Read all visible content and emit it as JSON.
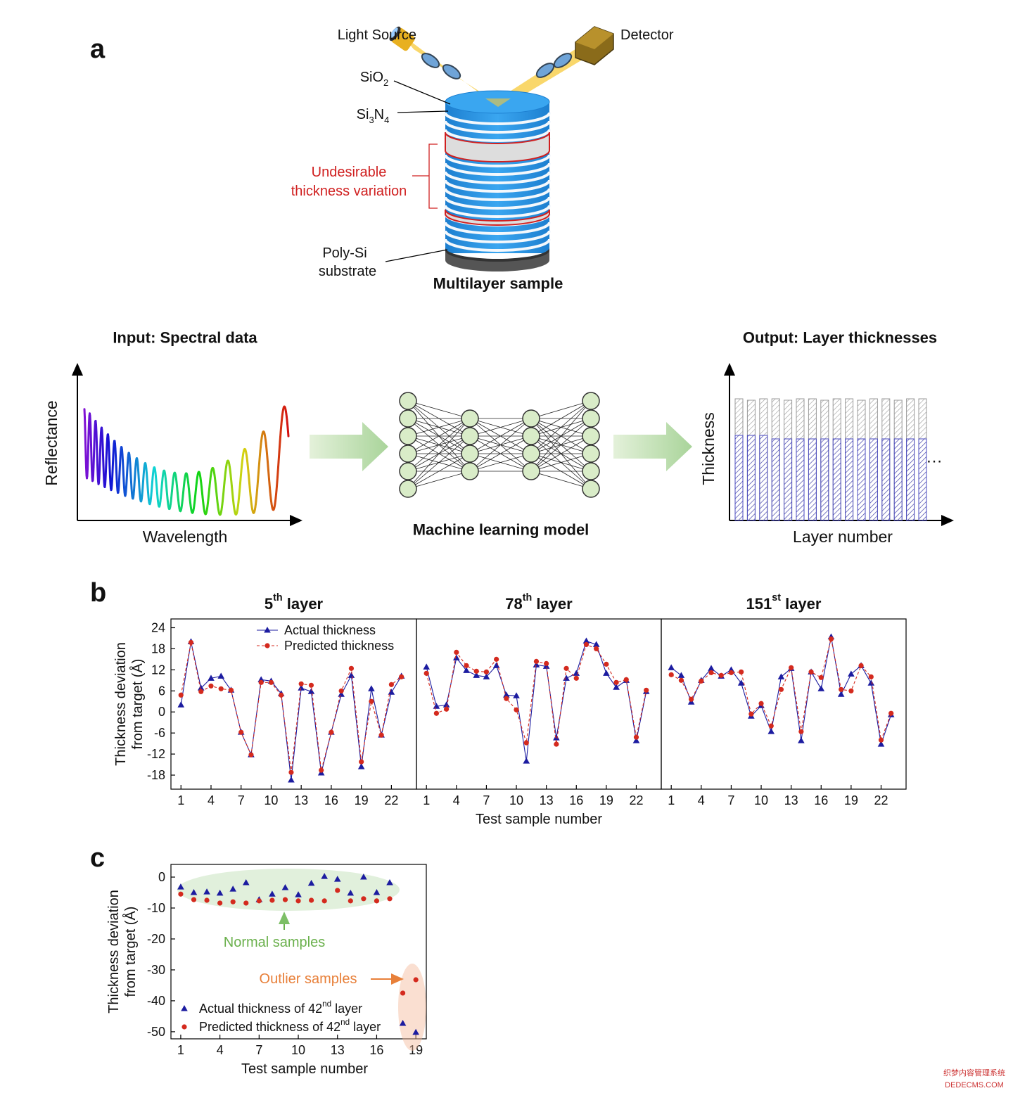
{
  "panel_a": {
    "label": "a",
    "light_source": "Light Source",
    "detector": "Detector",
    "sio2": "SiO2",
    "si3n4": "Si3N4",
    "variation": [
      "Undesirable",
      "thickness variation"
    ],
    "substrate": [
      "Poly-Si",
      "substrate"
    ],
    "sample": "Multilayer sample",
    "input_title": "Input: Spectral data",
    "input_ylabel": "Reflectance",
    "input_xlabel": "Wavelength",
    "model": "Machine learning model",
    "output_title": "Output: Layer thicknesses",
    "output_ylabel": "Thickness",
    "output_xlabel": "Layer number",
    "ellipsis": "…"
  },
  "panel_b_label": "b",
  "panel_c_label": "c",
  "watermark": [
    "织梦内容管理系统",
    "DEDECMS.COM"
  ],
  "chart_data": [
    {
      "type": "line",
      "title": "5th layer",
      "ylabel": [
        "Thickness deviation",
        "from target (Å)"
      ],
      "x": [
        1,
        2,
        3,
        4,
        5,
        6,
        7,
        8,
        9,
        10,
        11,
        12,
        13,
        14,
        15,
        16,
        17,
        18,
        19,
        20,
        21,
        22,
        23
      ],
      "xlim": [
        0,
        24.5
      ],
      "xticks": [
        1,
        4,
        7,
        10,
        13,
        16,
        19,
        22
      ],
      "ylim": [
        -22,
        26.5
      ],
      "yticks": [
        24,
        18,
        12,
        6,
        0,
        -6,
        -12,
        -18
      ],
      "series": [
        {
          "name": "Actual thickness",
          "color": "#1c1ca0",
          "marker": "triangle",
          "line": "solid",
          "values": [
            2.0,
            20,
            6.8,
            9.6,
            10.2,
            6.2,
            -5.8,
            -12.2,
            9.2,
            8.8,
            5.2,
            -19.4,
            6.8,
            5.8,
            -17.4,
            -5.8,
            5,
            10.4,
            -15.6,
            6.6,
            -6.6,
            5.6,
            10.2
          ]
        },
        {
          "name": "Predicted thickness",
          "color": "#d42a1e",
          "marker": "circle",
          "line": "dashed",
          "values": [
            4.8,
            19.8,
            5.8,
            7.4,
            6.6,
            6.2,
            -5.8,
            -12.2,
            8.4,
            8.4,
            4.8,
            -17.2,
            8,
            7.6,
            -16.6,
            -5.8,
            6,
            12.4,
            -14.2,
            3,
            -6.6,
            7.8,
            10
          ]
        }
      ]
    },
    {
      "type": "line",
      "title": "78th layer",
      "xlabel": "Test sample number",
      "x": [
        1,
        2,
        3,
        4,
        5,
        6,
        7,
        8,
        9,
        10,
        11,
        12,
        13,
        14,
        15,
        16,
        17,
        18,
        19,
        20,
        21,
        22,
        23
      ],
      "xlim": [
        0,
        24.5
      ],
      "xticks": [
        1,
        4,
        7,
        10,
        13,
        16,
        19,
        22
      ],
      "ylim": [
        -22,
        26.5
      ],
      "series": [
        {
          "color": "#1c1ca0",
          "marker": "triangle",
          "line": "solid",
          "values": [
            12.8,
            1.6,
            2,
            15.4,
            11.8,
            10.4,
            10,
            13.2,
            4.8,
            4.6,
            -14,
            13.4,
            13,
            -7.4,
            9.6,
            11,
            20.2,
            19.2,
            11,
            7,
            9,
            -8.2,
            5.8
          ]
        },
        {
          "color": "#d42a1e",
          "marker": "circle",
          "line": "dashed",
          "values": [
            11,
            -0.4,
            0.8,
            17,
            13.2,
            11.6,
            11.4,
            15,
            3.8,
            0.6,
            -8.8,
            14.4,
            13.8,
            -9.2,
            12.4,
            9.6,
            19.2,
            18,
            13.6,
            8.4,
            9.2,
            -7.2,
            6.2
          ]
        }
      ]
    },
    {
      "type": "line",
      "title": "151st layer",
      "x": [
        1,
        2,
        3,
        4,
        5,
        6,
        7,
        8,
        9,
        10,
        11,
        12,
        13,
        14,
        15,
        16,
        17,
        18,
        19,
        20,
        21,
        22,
        23
      ],
      "xlim": [
        0,
        24.5
      ],
      "xticks": [
        1,
        4,
        7,
        10,
        13,
        16,
        19,
        22
      ],
      "ylim": [
        -22,
        26.5
      ],
      "series": [
        {
          "color": "#1c1ca0",
          "marker": "triangle",
          "line": "solid",
          "values": [
            12.6,
            10.4,
            2.8,
            9,
            12.4,
            10.2,
            12,
            8.2,
            -1.2,
            1.8,
            -5.6,
            10,
            12.4,
            -8.2,
            11.4,
            6.6,
            21.4,
            5,
            10.8,
            13.2,
            8.2,
            -9.2,
            -0.8
          ]
        },
        {
          "color": "#d42a1e",
          "marker": "circle",
          "line": "dashed",
          "values": [
            10.6,
            9,
            3.6,
            8.8,
            11.2,
            10.4,
            11.2,
            11.4,
            -0.6,
            2.4,
            -4,
            6.4,
            12.6,
            -5.6,
            11.4,
            9.8,
            20.8,
            6.4,
            6,
            13.2,
            10,
            -8,
            -0.4
          ]
        }
      ]
    },
    {
      "type": "scatter",
      "ylabel": [
        "Thickness deviation",
        "from target (Å)"
      ],
      "xlabel": "Test sample number",
      "x": [
        1,
        2,
        3,
        4,
        5,
        6,
        7,
        8,
        9,
        10,
        11,
        12,
        13,
        14,
        15,
        16,
        17,
        18,
        19
      ],
      "xlim": [
        0.25,
        19.8
      ],
      "xticks": [
        1,
        4,
        7,
        10,
        13,
        16,
        19
      ],
      "ylim": [
        -52.3,
        4.1
      ],
      "yticks": [
        0,
        -10,
        -20,
        -30,
        -40,
        -50
      ],
      "annotations": [
        {
          "text": "Normal samples",
          "color": "#6ab04c"
        },
        {
          "text": "Outlier samples",
          "color": "#e8803a"
        }
      ],
      "series": [
        {
          "name": "Actual thickness of 42nd layer",
          "color": "#1c1ca0",
          "marker": "triangle",
          "values": [
            -3.2,
            -5,
            -4.8,
            -5.2,
            -3.9,
            -1.8,
            -7.3,
            -5.5,
            -3.4,
            -5.7,
            -2,
            0.2,
            -0.7,
            -5.2,
            0,
            -5,
            -1.8,
            -47.3,
            -50.2
          ]
        },
        {
          "name": "Predicted thickness of 42nd layer",
          "color": "#d42a1e",
          "marker": "circle",
          "values": [
            -5.5,
            -7.3,
            -7.5,
            -8.4,
            -8,
            -8.4,
            -7.7,
            -7.5,
            -7.3,
            -7.7,
            -7.5,
            -7.7,
            -4.3,
            -7.7,
            -7,
            -7.7,
            -7,
            -37.5,
            -33.2
          ]
        }
      ]
    }
  ]
}
